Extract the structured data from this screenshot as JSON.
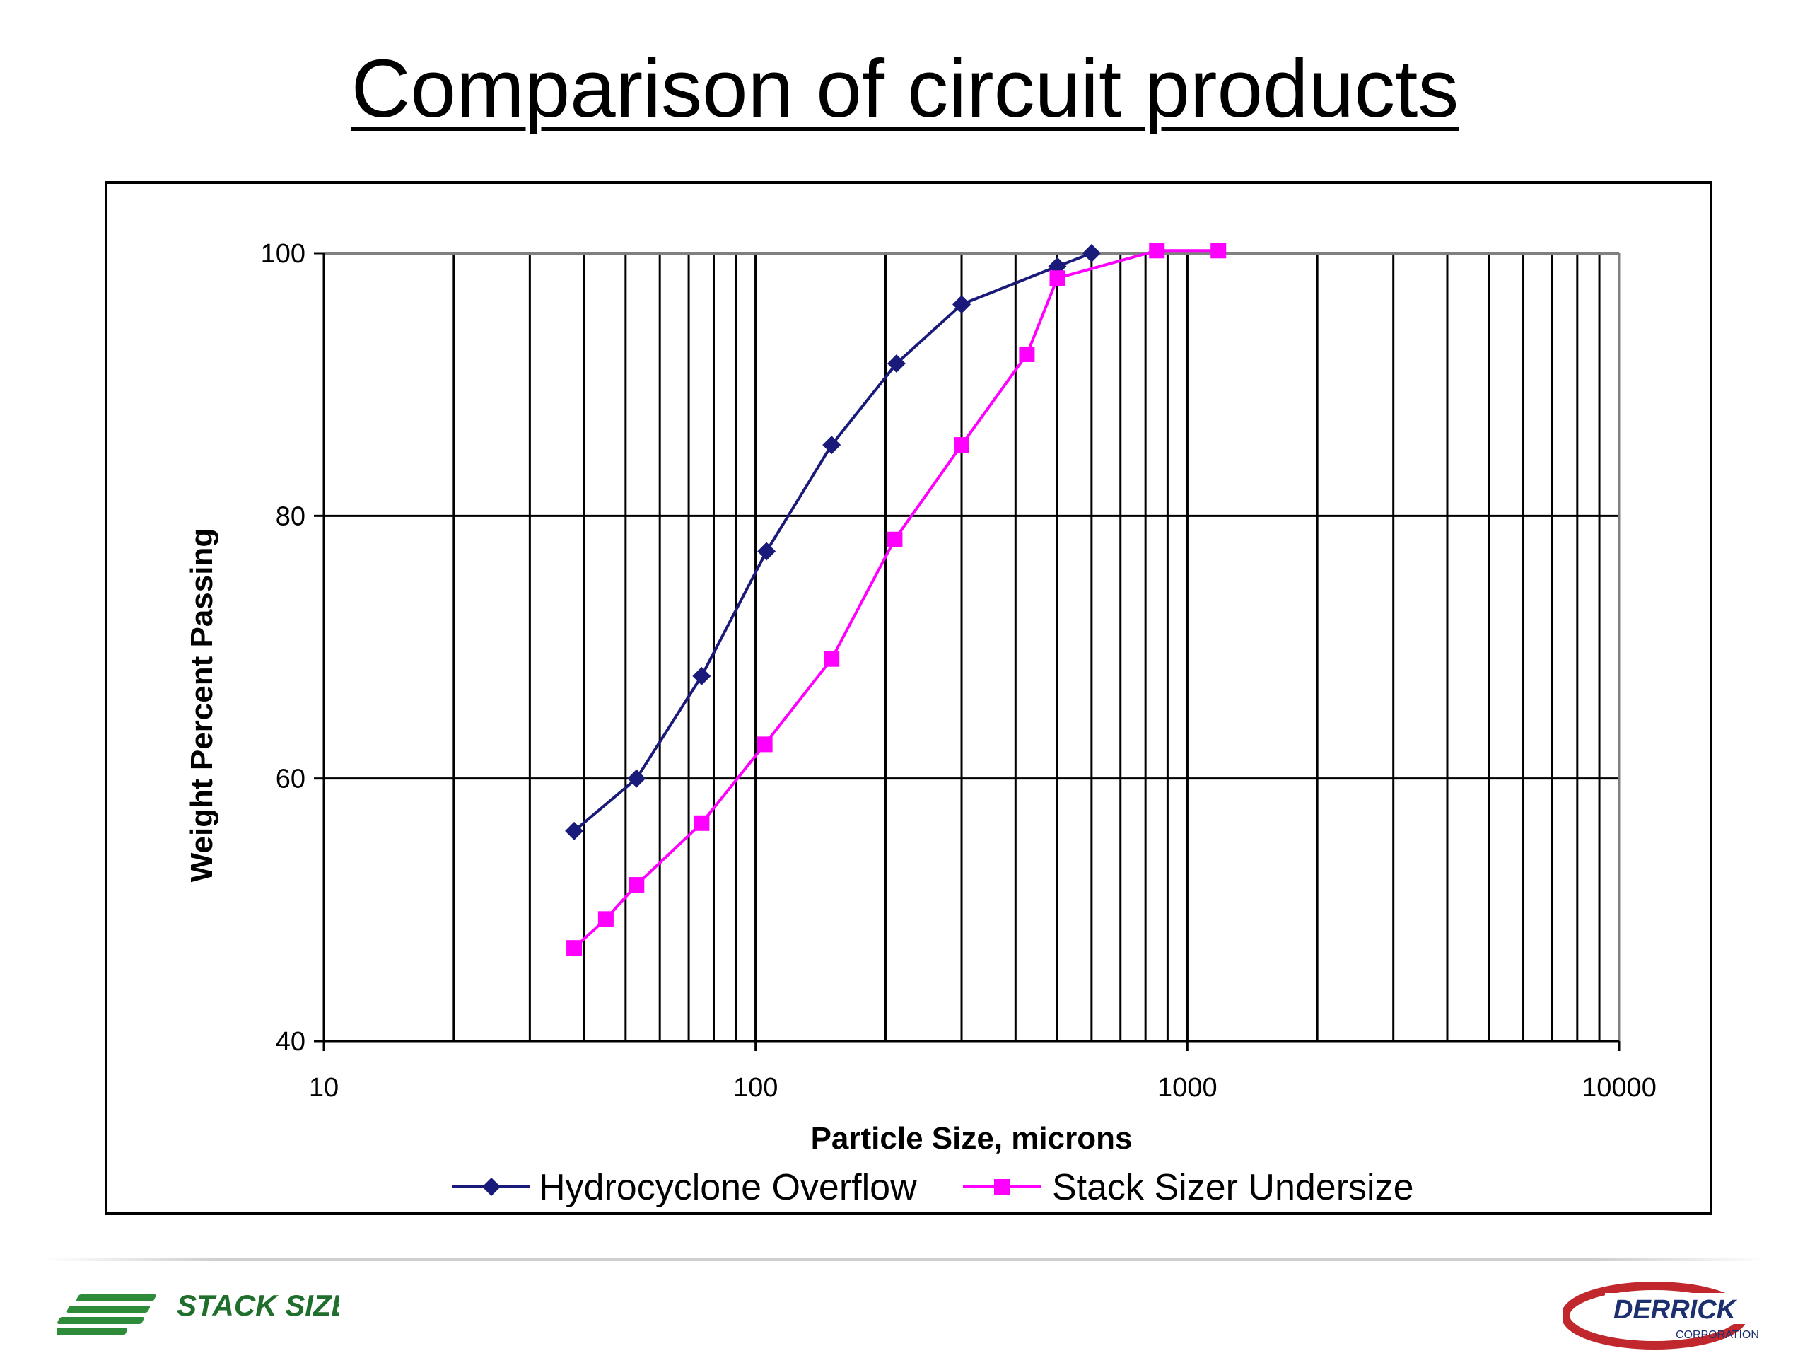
{
  "slide": {
    "title": "Comparison of circuit products"
  },
  "chart_data": {
    "type": "line",
    "title": "",
    "xlabel": "Particle Size, microns",
    "ylabel": "Weight Percent Passing",
    "x_scale": "log",
    "xlim": [
      10,
      10000
    ],
    "ylim": [
      40,
      100
    ],
    "x_ticks": [
      "10",
      "100",
      "1000",
      "10000"
    ],
    "y_ticks": [
      "40",
      "60",
      "80",
      "100"
    ],
    "grid": true,
    "legend_position": "bottom",
    "series": [
      {
        "name": "Hydrocyclone Overflow",
        "color": "#1a1a7a",
        "marker": "diamond",
        "x": [
          38,
          53,
          75,
          106,
          150,
          212,
          300,
          500,
          600
        ],
        "y": [
          56,
          60,
          67.8,
          77.3,
          85.4,
          91.6,
          96.1,
          99,
          100
        ]
      },
      {
        "name": "Stack Sizer Undersize",
        "color": "#ff00ff",
        "marker": "square",
        "x": [
          38,
          45,
          53,
          75,
          105,
          150,
          210,
          300,
          425,
          500,
          850,
          1180
        ],
        "y": [
          47.1,
          49.3,
          51.9,
          56.6,
          62.6,
          69.1,
          78.2,
          85.4,
          92.3,
          98.1,
          100.2,
          100.2
        ]
      }
    ]
  },
  "logos": {
    "left": "STACK SIZER",
    "left_icon": "stack-sizer-logo",
    "right": "DERRICK",
    "right_sub": "CORPORATION",
    "right_icon": "derrick-logo"
  }
}
